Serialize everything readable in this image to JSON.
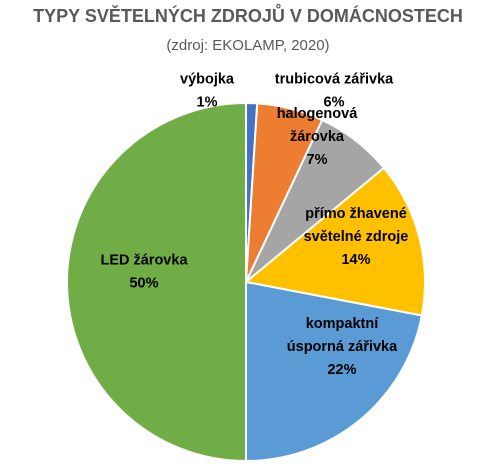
{
  "chart_data": {
    "type": "pie",
    "title": "TYPY SVĚTELNÝCH ZDROJŮ V DOMÁCNOSTECH",
    "subtitle": "(zdroj: EKOLAMP, 2020)",
    "slices": [
      {
        "label": [
          "výbojka"
        ],
        "value": 1,
        "value_label": "1%",
        "color": "#4472c4"
      },
      {
        "label": [
          "trubicová zářivka"
        ],
        "value": 6,
        "value_label": "6%",
        "color": "#ed7d31"
      },
      {
        "label": [
          "halogenová",
          "žárovka"
        ],
        "value": 7,
        "value_label": "7%",
        "color": "#a5a5a5"
      },
      {
        "label": [
          "přímo žhavené",
          "světelné zdroje"
        ],
        "value": 14,
        "value_label": "14%",
        "color": "#ffc000"
      },
      {
        "label": [
          "kompaktní",
          "úsporná zářivka"
        ],
        "value": 22,
        "value_label": "22%",
        "color": "#5b9bd5"
      },
      {
        "label": [
          "LED žárovka"
        ],
        "value": 50,
        "value_label": "50%",
        "color": "#70ad47"
      }
    ],
    "start_angle_deg": 0,
    "direction": "clockwise",
    "legend": "none"
  }
}
